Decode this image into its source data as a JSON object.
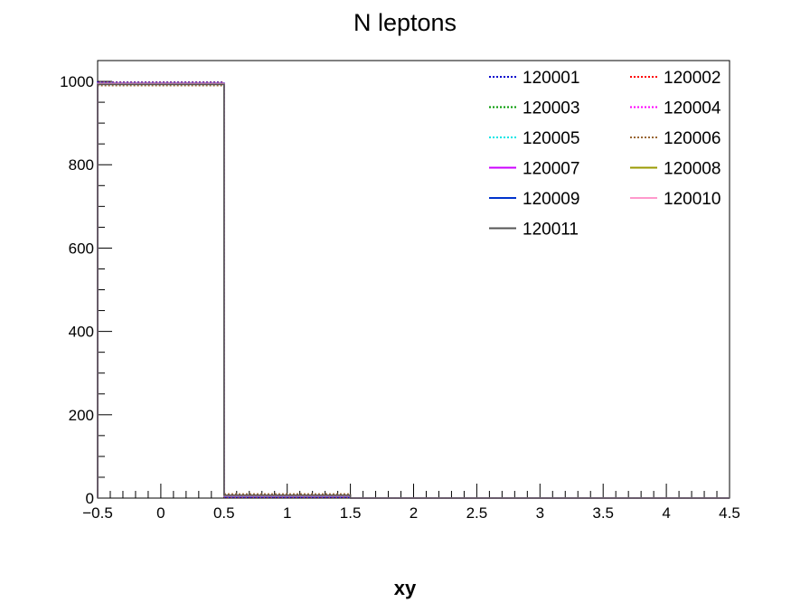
{
  "chart_data": {
    "type": "histogram",
    "title": "N leptons",
    "xlabel": "xy",
    "ylabel": "",
    "xlim": [
      -0.5,
      4.5
    ],
    "ylim": [
      0,
      1050
    ],
    "x_ticks": [
      -0.5,
      0,
      0.5,
      1,
      1.5,
      2,
      2.5,
      3,
      3.5,
      4,
      4.5
    ],
    "x_tick_labels": [
      "−0.5",
      "0",
      "0.5",
      "1",
      "1.5",
      "2",
      "2.5",
      "3",
      "3.5",
      "4",
      "4.5"
    ],
    "y_ticks": [
      0,
      200,
      400,
      600,
      800,
      1000
    ],
    "y_tick_labels": [
      "0",
      "200",
      "400",
      "600",
      "800",
      "1000"
    ],
    "bin_edges": [
      -0.5,
      0.5,
      1.5,
      2.5,
      3.5,
      4.5
    ],
    "legend_position": "top-right",
    "series": [
      {
        "name": "120001",
        "color": "#0000cc",
        "dash": "dotted",
        "values": [
          998,
          2,
          0,
          0,
          0
        ]
      },
      {
        "name": "120002",
        "color": "#ff0000",
        "dash": "dotted",
        "values": [
          997,
          3,
          0,
          0,
          0
        ]
      },
      {
        "name": "120003",
        "color": "#009900",
        "dash": "dotted",
        "values": [
          995,
          5,
          0,
          0,
          0
        ]
      },
      {
        "name": "120004",
        "color": "#ff00ff",
        "dash": "dotted",
        "values": [
          994,
          6,
          0,
          0,
          0
        ]
      },
      {
        "name": "120005",
        "color": "#00e5e5",
        "dash": "dotted",
        "values": [
          993,
          7,
          0,
          0,
          0
        ]
      },
      {
        "name": "120006",
        "color": "#996633",
        "dash": "dotted",
        "values": [
          990,
          10,
          0,
          0,
          0
        ]
      },
      {
        "name": "120007",
        "color": "#cc00ff",
        "dash": "solid",
        "values": [
          995,
          5,
          0,
          0,
          0
        ]
      },
      {
        "name": "120008",
        "color": "#999900",
        "dash": "solid",
        "values": [
          994,
          6,
          0,
          0,
          0
        ]
      },
      {
        "name": "120009",
        "color": "#0033cc",
        "dash": "solid",
        "values": [
          996,
          4,
          0,
          0,
          0
        ]
      },
      {
        "name": "120010",
        "color": "#ff99cc",
        "dash": "solid",
        "values": [
          995,
          5,
          0,
          0,
          0
        ]
      },
      {
        "name": "120011",
        "color": "#555555",
        "dash": "solid",
        "values": [
          993,
          7,
          0,
          0,
          0
        ]
      }
    ]
  }
}
